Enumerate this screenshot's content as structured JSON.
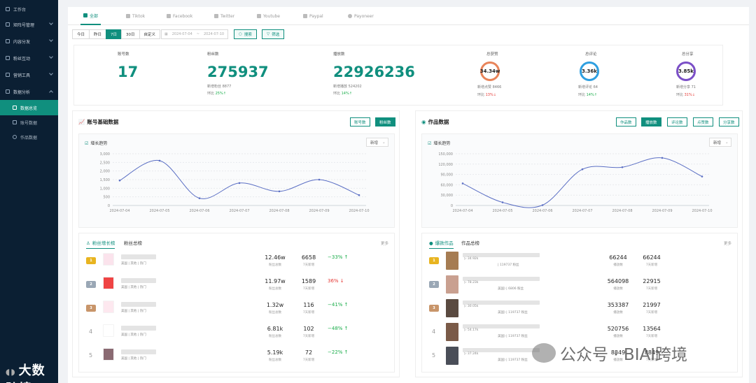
{
  "sidebar": {
    "items": [
      {
        "label": "工作台",
        "icon": "home-icon"
      },
      {
        "label": "矩阵号管理",
        "icon": "users-icon"
      },
      {
        "label": "内容分发",
        "icon": "send-icon"
      },
      {
        "label": "粉丝互动",
        "icon": "chat-icon"
      },
      {
        "label": "营销工具",
        "icon": "tool-icon"
      },
      {
        "label": "数据分析",
        "icon": "chart-icon"
      }
    ],
    "sub_items": [
      {
        "label": "数据总览",
        "icon": "overview-icon",
        "active": true
      },
      {
        "label": "账号数据",
        "icon": "account-icon",
        "active": false
      },
      {
        "label": "作品数据",
        "icon": "works-icon",
        "active": false
      }
    ],
    "logo": "大数跨境"
  },
  "tabs": [
    {
      "label": "全部",
      "icon": "grid-icon",
      "active": true
    },
    {
      "label": "Tiktok",
      "icon": "tiktok-icon"
    },
    {
      "label": "Facebook",
      "icon": "facebook-icon"
    },
    {
      "label": "Twitter",
      "icon": "twitter-icon"
    },
    {
      "label": "Youtube",
      "icon": "youtube-icon"
    },
    {
      "label": "Paypal",
      "icon": "paypal-icon"
    },
    {
      "label": "Payoneer",
      "icon": "payoneer-icon"
    }
  ],
  "filters": {
    "ranges": [
      "今日",
      "昨日",
      "7日",
      "30日",
      "自定义"
    ],
    "active_range": "7日",
    "date_start": "2024-07-04",
    "date_sep": "~",
    "date_end": "2024-07-10",
    "search": "搜索",
    "filter": "筛选"
  },
  "stats": {
    "accounts": {
      "label": "账号数",
      "value": "17"
    },
    "fans": {
      "label": "粉丝数",
      "value": "275937",
      "new_label": "新增粉丝",
      "new_value": "8877",
      "ratio_label": "环比",
      "ratio": "25%"
    },
    "plays": {
      "label": "播放数",
      "value": "22926236",
      "new_label": "新增播放",
      "new_value": "524202",
      "ratio_label": "环比",
      "ratio": "14%"
    },
    "likes": {
      "label": "总获赞",
      "value": "34.34w",
      "new_label": "新增点赞",
      "new_value": "8466",
      "ratio_label": "环比",
      "ratio": "13%",
      "color": "#e8845a"
    },
    "comments": {
      "label": "总评论",
      "value": "3.36k",
      "new_label": "新增评论",
      "new_value": "64",
      "ratio_label": "环比",
      "ratio": "14%",
      "color": "#2f9fe0"
    },
    "shares": {
      "label": "总分享",
      "value": "3.85k",
      "new_label": "新增分享",
      "new_value": "71",
      "ratio_label": "环比",
      "ratio": "31%",
      "color": "#7b4fc7"
    }
  },
  "left_panel": {
    "title": "账号基础数据",
    "buttons": [
      "账号数",
      "粉丝数"
    ],
    "trend_title": "增长趋势",
    "select": "新增",
    "rank_tabs": [
      "粉丝增长榜",
      "粉丝总榜"
    ],
    "more": "更多",
    "rows": [
      {
        "rank": "1",
        "tags": "美国 | 其他 | 热门",
        "total": "12.46w",
        "total_label": "粉丝总数",
        "growth": "6658",
        "growth_label": "7天新增",
        "ratio": "−33%",
        "dir": "up",
        "thumb": "#fbe3ec"
      },
      {
        "rank": "2",
        "tags": "美国 | 其他 | 热门",
        "total": "11.97w",
        "total_label": "粉丝总数",
        "growth": "1589",
        "growth_label": "7天新增",
        "ratio": "36%",
        "dir": "down",
        "thumb": "#ef4444"
      },
      {
        "rank": "3",
        "tags": "美国 | 其他 | 热门",
        "total": "1.32w",
        "total_label": "粉丝总数",
        "growth": "116",
        "growth_label": "7天新增",
        "ratio": "−41%",
        "dir": "up",
        "thumb": "#fde8ef"
      },
      {
        "rank": "4",
        "tags": "美国 | 其他 | 热门",
        "total": "6.81k",
        "total_label": "粉丝总数",
        "growth": "102",
        "growth_label": "7天新增",
        "ratio": "−48%",
        "dir": "up",
        "thumb": "#ffffff"
      },
      {
        "rank": "5",
        "tags": "美国 | 其他 | 热门",
        "total": "5.19k",
        "total_label": "粉丝总数",
        "growth": "72",
        "growth_label": "7天新增",
        "ratio": "−22%",
        "dir": "up",
        "thumb": "#8a6a72"
      }
    ]
  },
  "right_panel": {
    "title": "作品数据",
    "buttons": [
      "作品数",
      "播放数",
      "评论数",
      "点赞数",
      "分享数"
    ],
    "trend_title": "增长趋势",
    "select": "新增",
    "rank_tabs": [
      "爆款作品",
      "作品总榜"
    ],
    "more": "更多",
    "rows": [
      {
        "rank": "1",
        "meta": "34.92k",
        "sub": "| 119737 粉丝",
        "total": "66244",
        "total_label": "播放数",
        "growth": "66244",
        "growth_label": "7天新增",
        "thumb": "#a67c52"
      },
      {
        "rank": "2",
        "meta": "78.23k",
        "sub": "美国) | 6806 粉丝",
        "total": "564098",
        "total_label": "播放数",
        "growth": "22915",
        "growth_label": "7天新增",
        "thumb": "#c9a090"
      },
      {
        "rank": "3",
        "meta": "30.05k",
        "sub": "美国) | 119737 粉丝",
        "total": "353387",
        "total_label": "播放数",
        "growth": "21997",
        "growth_label": "7天新增",
        "thumb": "#5a4a40"
      },
      {
        "rank": "4",
        "meta": "54.17k",
        "sub": "美国) | 119737 粉丝",
        "total": "520756",
        "total_label": "播放数",
        "growth": "13564",
        "growth_label": "7天新增",
        "thumb": "#7a5a48"
      },
      {
        "rank": "5",
        "meta": "37.24k",
        "sub": "美国) | 119737 粉丝",
        "total": "8849",
        "total_label": "播放数",
        "growth": "8849",
        "growth_label": "7天新增",
        "thumb": "#4a4e58"
      }
    ]
  },
  "watermark": "公众号 · BIAI跨境",
  "chart_data": [
    {
      "type": "line",
      "title": "增长趋势",
      "x": [
        "2024-07-04",
        "2024-07-05",
        "2024-07-06",
        "2024-07-07",
        "2024-07-08",
        "2024-07-09",
        "2024-07-10"
      ],
      "series": [
        {
          "values": [
            1450,
            2600,
            420,
            1300,
            820,
            1500,
            600
          ]
        }
      ],
      "yticks": [
        0,
        500,
        1000,
        1500,
        2000,
        2500,
        3000
      ],
      "ylim": [
        0,
        3000
      ],
      "grid": true
    },
    {
      "type": "line",
      "title": "增长趋势",
      "x": [
        "2024-07-04",
        "2024-07-05",
        "2024-07-06",
        "2024-07-07",
        "2024-07-08",
        "2024-07-09",
        "2024-07-10"
      ],
      "series": [
        {
          "values": [
            64000,
            9000,
            1000,
            105000,
            111000,
            138000,
            84000
          ]
        }
      ],
      "yticks": [
        0,
        30000,
        60000,
        90000,
        120000,
        150000
      ],
      "ylim": [
        0,
        150000
      ],
      "grid": true
    }
  ]
}
